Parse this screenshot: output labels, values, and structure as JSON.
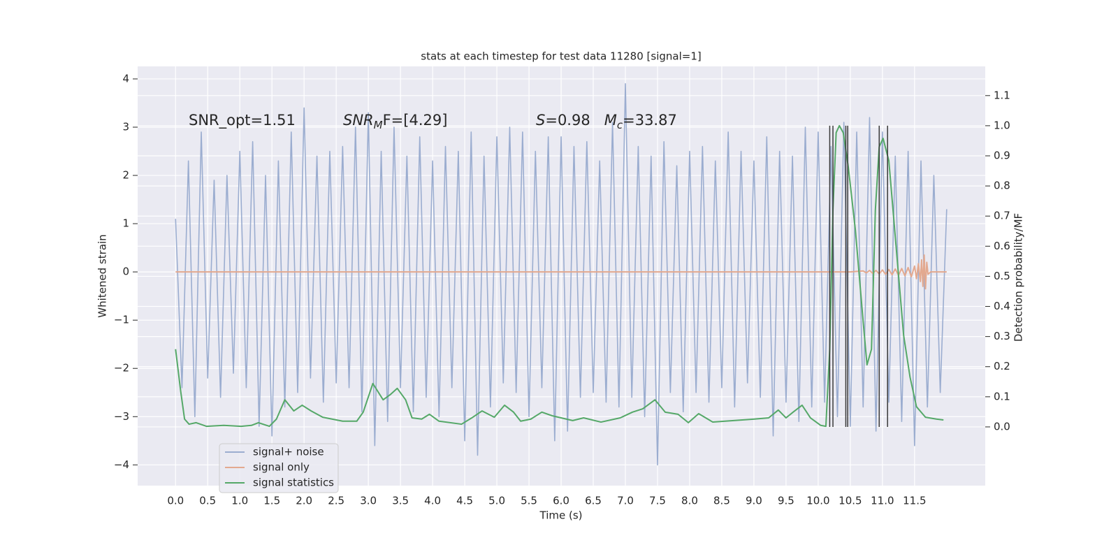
{
  "chart_data": {
    "type": "line",
    "title": "stats at each timestep for test data 11280 [signal=1]",
    "xlabel": "Time (s)",
    "ylabel": "Whitened strain",
    "y2label": "Detection probability/MF",
    "xlim": [
      -0.59,
      12.6
    ],
    "ylim": [
      -4.43,
      4.26
    ],
    "y2lim": [
      -0.195,
      1.197
    ],
    "xticks": [
      {
        "value": 0,
        "label": "0.0"
      },
      0.5,
      {
        "value": 1,
        "label": "1.0"
      },
      1.5,
      {
        "value": 2,
        "label": "2.0"
      },
      2.5,
      {
        "value": 3,
        "label": "3.0"
      },
      3.5,
      {
        "value": 4,
        "label": "4.0"
      },
      4.5,
      {
        "value": 5,
        "label": "5.0"
      },
      5.5,
      {
        "value": 6,
        "label": "6.0"
      },
      6.5,
      {
        "value": 7,
        "label": "7.0"
      },
      7.5,
      {
        "value": 8,
        "label": "8.0"
      },
      8.5,
      {
        "value": 9,
        "label": "9.0"
      },
      9.5,
      {
        "value": 10,
        "label": "10.0"
      },
      10.5,
      {
        "value": 11,
        "label": "11.0"
      },
      11.5
    ],
    "yticks": [
      {
        "value": -4,
        "label": "−4"
      },
      {
        "value": -3,
        "label": "−3"
      },
      {
        "value": -2,
        "label": "−2"
      },
      {
        "value": -1,
        "label": "−1"
      },
      0,
      1,
      2,
      3,
      4
    ],
    "y2ticks": [
      {
        "value": 0,
        "label": "0.0"
      },
      0.1,
      0.2,
      0.3,
      0.4,
      0.5,
      0.6,
      0.7,
      0.8,
      0.9,
      {
        "value": 1,
        "label": "1.0"
      },
      1.1
    ],
    "grid": true,
    "legend": "lower left",
    "series": [
      {
        "name": "signal+ noise",
        "color": "#9badd0",
        "x": [
          0,
          0.1,
          0.2,
          0.3,
          0.4,
          0.5,
          0.6,
          0.7,
          0.8,
          0.9,
          1,
          1.1,
          1.2,
          1.3,
          1.4,
          1.5,
          1.6,
          1.7,
          1.8,
          1.9,
          2,
          2.1,
          2.2,
          2.3,
          2.4,
          2.5,
          2.6,
          2.7,
          2.8,
          2.9,
          3,
          3.1,
          3.2,
          3.3,
          3.4,
          3.5,
          3.6,
          3.7,
          3.8,
          3.9,
          4,
          4.1,
          4.2,
          4.3,
          4.4,
          4.5,
          4.6,
          4.7,
          4.8,
          4.9,
          5,
          5.1,
          5.2,
          5.3,
          5.4,
          5.5,
          5.6,
          5.7,
          5.8,
          5.9,
          6,
          6.1,
          6.2,
          6.3,
          6.4,
          6.5,
          6.6,
          6.7,
          6.8,
          6.9,
          7,
          7.1,
          7.2,
          7.3,
          7.4,
          7.5,
          7.6,
          7.7,
          7.8,
          7.9,
          8,
          8.1,
          8.2,
          8.3,
          8.4,
          8.5,
          8.6,
          8.7,
          8.8,
          8.9,
          9,
          9.1,
          9.2,
          9.3,
          9.4,
          9.5,
          9.6,
          9.7,
          9.8,
          9.9,
          10,
          10.1,
          10.2,
          10.3,
          10.4,
          10.5,
          10.6,
          10.7,
          10.8,
          10.9,
          11,
          11.1,
          11.2,
          11.3,
          11.4,
          11.5,
          11.6,
          11.7,
          11.8,
          11.9,
          12
        ],
        "values": [
          1.1,
          -2.4,
          2.3,
          -3.0,
          2.9,
          -2.2,
          1.9,
          -2.6,
          2.0,
          -2.1,
          2.5,
          -2.4,
          2.7,
          -3.2,
          2.0,
          -3.4,
          2.3,
          -2.8,
          2.9,
          -2.5,
          3.4,
          -2.2,
          2.4,
          -2.7,
          2.5,
          -2.3,
          2.6,
          -2.4,
          3.0,
          -2.9,
          3.3,
          -3.6,
          2.5,
          -3.1,
          3.0,
          -2.4,
          2.4,
          -2.9,
          2.8,
          -2.6,
          2.3,
          -3.0,
          2.6,
          -2.4,
          2.5,
          -3.5,
          2.9,
          -3.8,
          2.4,
          -2.8,
          2.8,
          -2.3,
          3.0,
          -2.5,
          2.9,
          -3.0,
          2.5,
          -2.4,
          2.8,
          -3.5,
          2.8,
          -3.3,
          2.6,
          -2.6,
          2.7,
          -2.5,
          2.3,
          -2.7,
          3.1,
          -2.8,
          3.9,
          -2.6,
          2.6,
          -3.0,
          2.4,
          -4.0,
          2.7,
          -2.5,
          2.2,
          -2.9,
          2.5,
          -2.5,
          2.6,
          -2.7,
          2.3,
          -2.4,
          2.9,
          -2.8,
          2.5,
          -2.3,
          2.3,
          -2.6,
          2.8,
          -3.4,
          2.5,
          -2.7,
          2.4,
          -3.1,
          3.0,
          -2.8,
          2.9,
          -2.7,
          2.6,
          -3.0,
          3.1,
          -3.2,
          2.9,
          -2.8,
          3.2,
          -3.3,
          2.9,
          -2.7,
          2.4,
          -3.1,
          2.5,
          -3.6,
          2.3,
          -2.8,
          2.0,
          -2.5,
          1.3
        ]
      },
      {
        "name": "signal only",
        "color": "#e3a98f",
        "x": [
          0,
          10.5,
          10.7,
          10.75,
          10.8,
          10.85,
          10.9,
          10.95,
          11.0,
          11.05,
          11.1,
          11.15,
          11.2,
          11.25,
          11.3,
          11.35,
          11.4,
          11.45,
          11.5,
          11.53,
          11.56,
          11.59,
          11.61,
          11.63,
          11.65,
          11.67,
          11.69,
          11.71,
          11.75,
          12.0
        ],
        "values": [
          0,
          0,
          0.02,
          -0.02,
          0.03,
          -0.03,
          0.03,
          -0.04,
          0.04,
          -0.05,
          0.05,
          -0.06,
          0.06,
          -0.07,
          0.07,
          -0.08,
          0.09,
          -0.1,
          0.12,
          -0.14,
          0.17,
          -0.2,
          0.25,
          -0.3,
          0.35,
          -0.35,
          0.2,
          -0.05,
          0,
          0
        ]
      },
      {
        "name": "signal statistics",
        "color": "#55a868",
        "axis": "y2",
        "x": [
          0,
          0.08,
          0.14,
          0.21,
          0.32,
          0.48,
          0.75,
          1.02,
          1.18,
          1.29,
          1.46,
          1.57,
          1.7,
          1.84,
          1.97,
          2.11,
          2.29,
          2.6,
          2.82,
          2.92,
          3.07,
          3.23,
          3.34,
          3.45,
          3.58,
          3.68,
          3.83,
          3.95,
          4.1,
          4.45,
          4.61,
          4.77,
          4.96,
          5.12,
          5.26,
          5.37,
          5.53,
          5.7,
          5.86,
          6.18,
          6.35,
          6.62,
          6.92,
          7.11,
          7.27,
          7.46,
          7.62,
          7.82,
          7.98,
          8.14,
          8.36,
          9.01,
          9.23,
          9.38,
          9.5,
          9.61,
          9.75,
          9.88,
          10.04,
          10.12,
          10.18,
          10.23,
          10.28,
          10.33,
          10.39,
          10.47,
          10.58,
          10.7,
          10.76,
          10.83,
          10.89,
          10.95,
          11.01,
          11.1,
          11.21,
          11.33,
          11.43,
          11.53,
          11.67,
          11.84,
          11.95
        ],
        "values": [
          0.258,
          0.118,
          0.026,
          0.009,
          0.014,
          0.002,
          0.005,
          0.002,
          0.005,
          0.014,
          0.002,
          0.026,
          0.09,
          0.053,
          0.072,
          0.053,
          0.032,
          0.019,
          0.019,
          0.049,
          0.144,
          0.09,
          0.107,
          0.128,
          0.09,
          0.03,
          0.026,
          0.042,
          0.019,
          0.009,
          0.03,
          0.053,
          0.032,
          0.072,
          0.049,
          0.019,
          0.026,
          0.049,
          0.037,
          0.021,
          0.03,
          0.016,
          0.03,
          0.049,
          0.06,
          0.09,
          0.049,
          0.042,
          0.014,
          0.044,
          0.016,
          0.026,
          0.03,
          0.056,
          0.03,
          0.049,
          0.072,
          0.03,
          0.005,
          0.002,
          0.258,
          0.72,
          0.977,
          1.0,
          0.977,
          0.861,
          0.652,
          0.35,
          0.206,
          0.258,
          0.72,
          0.93,
          0.958,
          0.884,
          0.606,
          0.304,
          0.165,
          0.067,
          0.032,
          0.026,
          0.023
        ]
      }
    ],
    "vlines": {
      "x": [
        10.18,
        10.23,
        10.43,
        10.46,
        10.95,
        11.08
      ],
      "ymin": 0,
      "ymax": 1,
      "axis": "y2",
      "color": "#3a3a3a"
    },
    "annotations": [
      {
        "parts": [
          {
            "text": "SNR_opt=1.51"
          }
        ]
      },
      {
        "parts": [
          {
            "text": "SNR",
            "style": "italic"
          },
          {
            "text": "M",
            "style": "italic-sub"
          },
          {
            "text": "F=[4.29]"
          }
        ]
      },
      {
        "parts": [
          {
            "text": "S",
            "style": "italic"
          },
          {
            "text": "=0.98   "
          },
          {
            "text": "M",
            "style": "italic"
          },
          {
            "text": "c",
            "style": "italic-sub"
          },
          {
            "text": "=33.87"
          }
        ]
      }
    ]
  }
}
